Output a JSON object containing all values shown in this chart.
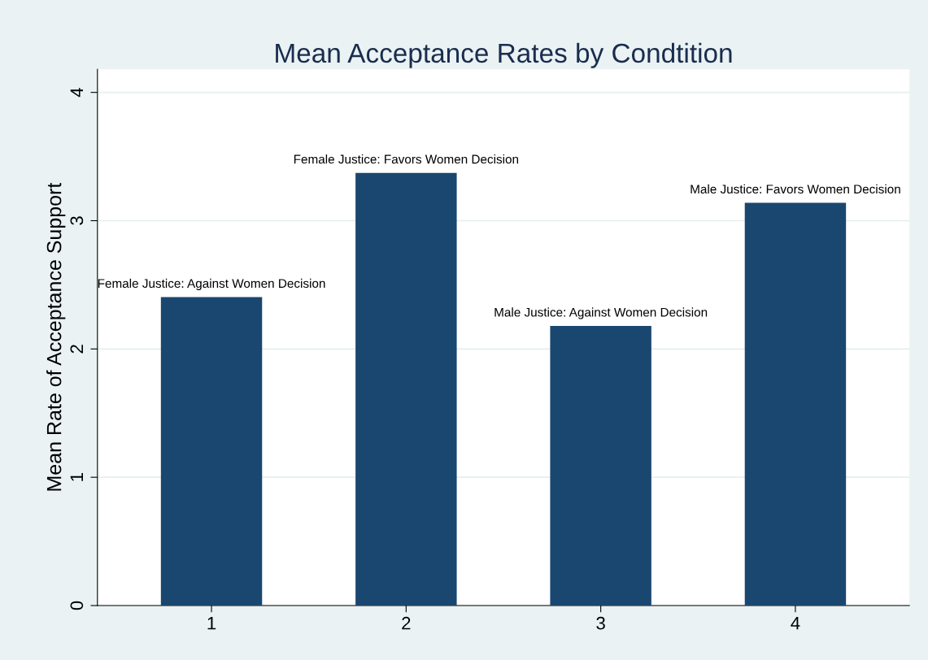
{
  "chart_data": {
    "type": "bar",
    "title": "Mean Acceptance Rates by Condtition",
    "ylabel": "Mean Rate of Acceptance Support",
    "categories": [
      "1",
      "2",
      "3",
      "4"
    ],
    "values": [
      2.405,
      3.373,
      2.18,
      3.14
    ],
    "color": "#1a476f",
    "ylim": [
      0,
      4.18
    ],
    "yticks": [
      0,
      1,
      2,
      3,
      4
    ],
    "grid": "y",
    "annotations": [
      {
        "text": "Female Justice: Against Women Decision",
        "x": "1",
        "y": 2.405
      },
      {
        "text": "Female Justice: Favors Women Decision",
        "x": "2",
        "y": 3.373
      },
      {
        "text": "Male Justice: Against Women Decision",
        "x": "3",
        "y": 2.18
      },
      {
        "text": "Male Justice: Favors Women Decision",
        "x": "4",
        "y": 3.14
      }
    ]
  }
}
